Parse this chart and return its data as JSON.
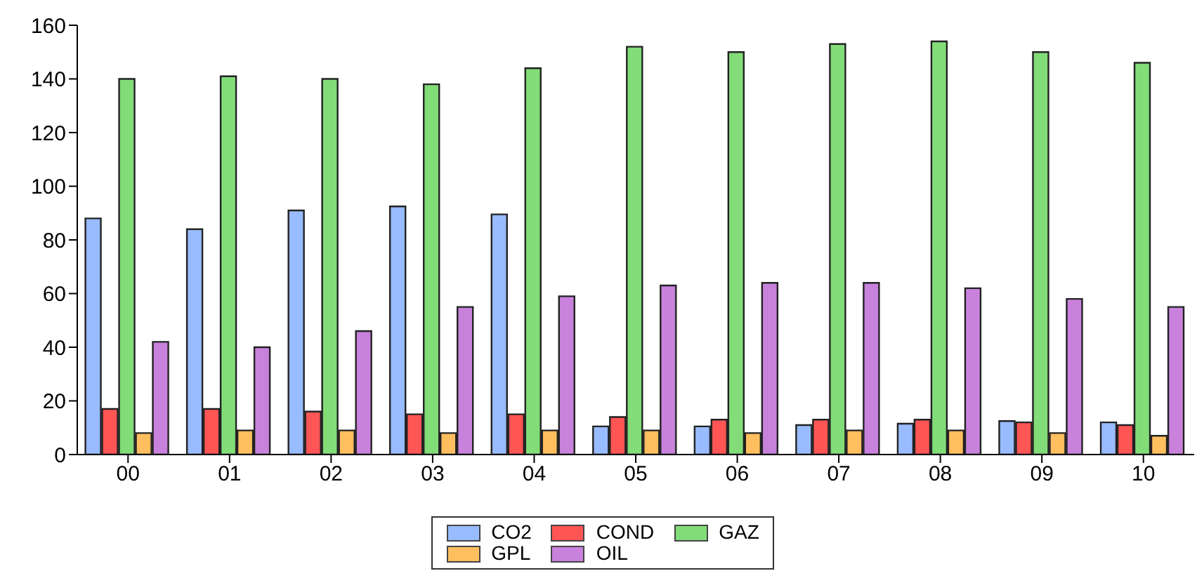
{
  "chart_data": {
    "type": "bar",
    "categories": [
      "00",
      "01",
      "02",
      "03",
      "04",
      "05",
      "06",
      "07",
      "08",
      "09",
      "10"
    ],
    "series": [
      {
        "name": "CO2",
        "color": "#99bbff",
        "values": [
          88,
          84,
          91,
          92.5,
          89.5,
          10.5,
          10.5,
          11,
          11.5,
          12.5,
          12
        ]
      },
      {
        "name": "COND",
        "color": "#ff5555",
        "values": [
          17,
          17,
          16,
          15,
          15,
          14,
          13,
          13,
          13,
          12,
          11
        ]
      },
      {
        "name": "GAZ",
        "color": "#82dc78",
        "values": [
          140,
          141,
          140,
          138,
          144,
          152,
          150,
          153,
          154,
          150,
          146
        ]
      },
      {
        "name": "GPL",
        "color": "#ffbf5f",
        "values": [
          8,
          9,
          9,
          8,
          9,
          9,
          8,
          9,
          9,
          8,
          7
        ]
      },
      {
        "name": "OIL",
        "color": "#c882dc",
        "values": [
          42,
          40,
          46,
          55,
          59,
          63,
          64,
          64,
          62,
          58,
          55
        ]
      }
    ],
    "ylim": [
      0,
      160
    ],
    "yticks": [
      0,
      20,
      40,
      60,
      80,
      100,
      120,
      140,
      160
    ],
    "grid": false,
    "legend": "bottom"
  }
}
